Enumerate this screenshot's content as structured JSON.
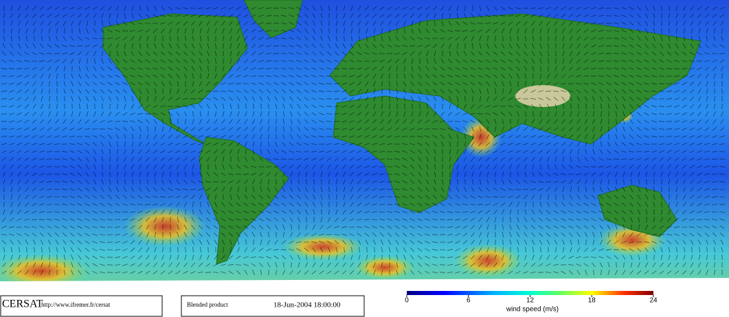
{
  "footer": {
    "logo": "CERSAT",
    "url": "http://www.ifremer.fr/cersat",
    "product": "Blended product",
    "date": "18-Jun-2004 18:00:00"
  },
  "colorbar": {
    "range": [
      0,
      24
    ],
    "ticks": [
      0,
      6,
      12,
      18,
      24
    ],
    "label": "wind speed (m/s)"
  }
}
